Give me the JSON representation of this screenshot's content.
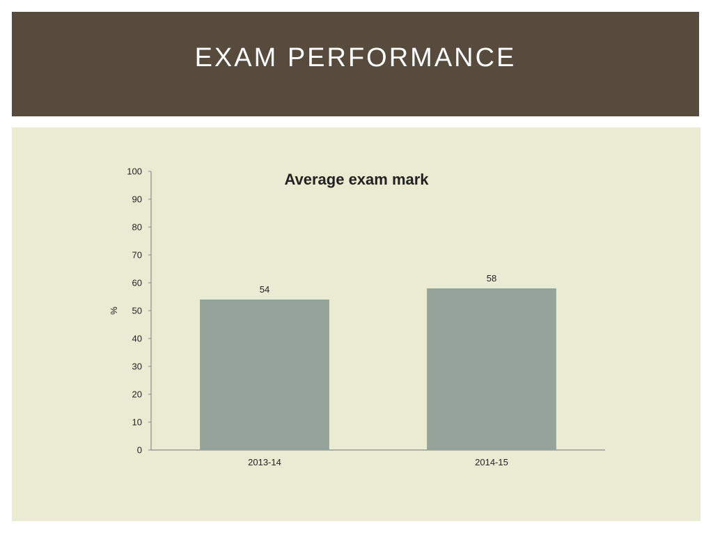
{
  "header": {
    "title": "EXAM PERFORMANCE"
  },
  "colors": {
    "header_bg": "#564b3d",
    "panel_bg": "#e9ebd2",
    "bar_fill": "#95a39b",
    "axis": "#8c8c8c"
  },
  "chart_data": {
    "type": "bar",
    "title": "Average exam mark",
    "xlabel": "",
    "ylabel": "%",
    "categories": [
      "2013-14",
      "2014-15"
    ],
    "values": [
      54,
      58
    ],
    "data_labels": [
      "54",
      "58"
    ],
    "ylim": [
      0,
      100
    ],
    "yticks": [
      0,
      10,
      20,
      30,
      40,
      50,
      60,
      70,
      80,
      90,
      100
    ],
    "grid": false,
    "legend": "none"
  }
}
